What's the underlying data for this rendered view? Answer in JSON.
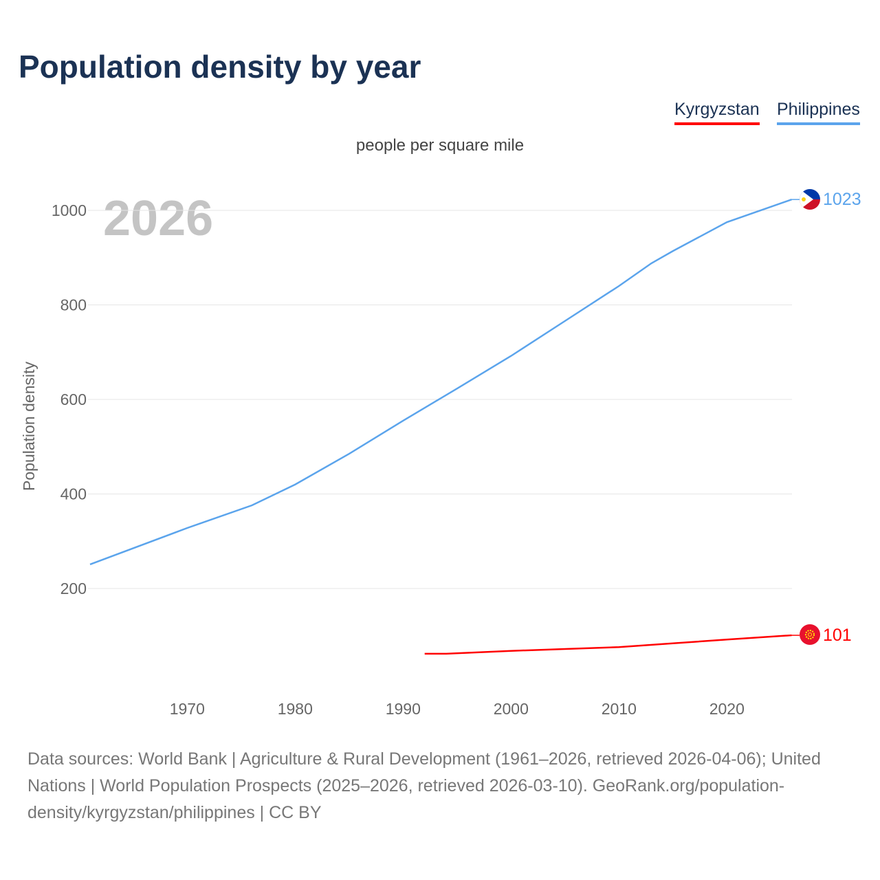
{
  "title": "Population density by year",
  "legend": [
    {
      "name": "Kyrgyzstan",
      "color": "#ff0000"
    },
    {
      "name": "Philippines",
      "color": "#5ba4ec"
    }
  ],
  "unit": "people per square mile",
  "year_label": "2026",
  "source": "Data sources: World Bank | Agriculture & Rural Development (1961–2026, retrieved 2026-04-06); United Nations | World Population Prospects (2025–2026, retrieved 2026-03-10). GeoRank.org/population-density/kyrgyzstan/philippines | CC BY",
  "chart_data": {
    "type": "line",
    "ylabel": "Population density",
    "xlabel": "",
    "ylim": [
      0,
      1100
    ],
    "xlim": [
      1961,
      2026
    ],
    "yticks": [
      200,
      400,
      600,
      800,
      1000
    ],
    "xticks": [
      1970,
      1980,
      1990,
      2000,
      2010,
      2020
    ],
    "grid": true,
    "legend_position": "top-right",
    "series": [
      {
        "name": "Philippines",
        "color": "#5ba4ec",
        "end_label": "1023",
        "x": [
          1961,
          1970,
          1976,
          1980,
          1985,
          1990,
          1995,
          2000,
          2005,
          2010,
          2013,
          2015,
          2020,
          2026
        ],
        "y": [
          251,
          328,
          376,
          420,
          485,
          555,
          623,
          692,
          766,
          840,
          888,
          914,
          975,
          1023
        ]
      },
      {
        "name": "Kyrgyzstan",
        "color": "#ff0000",
        "end_label": "101",
        "x": [
          1992,
          1994,
          2000,
          2005,
          2010,
          2015,
          2020,
          2026
        ],
        "y": [
          62,
          62,
          68,
          72,
          76,
          84,
          92,
          101
        ]
      }
    ]
  }
}
